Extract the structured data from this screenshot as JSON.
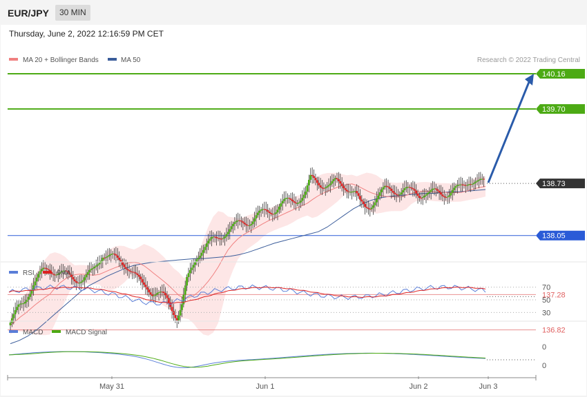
{
  "header": {
    "pair": "EUR/JPY",
    "timeframe": "30 MIN"
  },
  "timestamp": "Thursday, June 2, 2022 12:16:59 PM CET",
  "legend": {
    "ma20": "MA 20 + Bollinger Bands",
    "ma50": "MA 50",
    "credit": "Research © 2022 Trading Central",
    "rsi": "RSI",
    "rsi_ma": "9MA",
    "macd": "MACD",
    "macd_signal": "MACD Signal"
  },
  "colors": {
    "resistance": "#4caa14",
    "support": "#2a5bd7",
    "minor": "#e06060",
    "ma20": "#f08080",
    "ma50": "#3a5c9a",
    "rsi": "#5a7ed8",
    "rsi_ma": "#dd2020",
    "macd": "#5a7ed8",
    "macd_signal": "#4caa14",
    "bb_fill": "#fde2e2",
    "candle_up": "#4caa14",
    "candle_down": "#dd2020",
    "arrow": "#2a5baa"
  },
  "chart_data": [
    {
      "type": "line",
      "subtype": "candlestick",
      "x_ticks": [
        "May 31",
        "Jun 1",
        "Jun 2",
        "Jun 3"
      ],
      "ylim": [
        136.55,
        140.35
      ],
      "price_levels": [
        {
          "value": 140.16,
          "label": "140.16",
          "kind": "resistance"
        },
        {
          "value": 139.7,
          "label": "139.70",
          "kind": "resistance"
        },
        {
          "value": 138.73,
          "label": "138.73",
          "kind": "current"
        },
        {
          "value": 138.05,
          "label": "138.05",
          "kind": "support"
        },
        {
          "value": 137.28,
          "label": "137.28",
          "kind": "minor"
        },
        {
          "value": 136.82,
          "label": "136.82",
          "kind": "minor"
        }
      ],
      "forecast_target": 140.16,
      "close_series": [
        136.88,
        136.98,
        137.1,
        137.18,
        137.31,
        137.42,
        137.5,
        137.58,
        137.62,
        137.6,
        137.57,
        137.54,
        137.52,
        137.5,
        137.49,
        137.48,
        137.52,
        137.58,
        137.7,
        137.82,
        137.79,
        137.76,
        137.72,
        137.7,
        137.66,
        137.58,
        137.48,
        137.4,
        137.38,
        137.32,
        137.3,
        137.26,
        137.2,
        137.1,
        137.0,
        137.15,
        137.45,
        137.6,
        137.78,
        137.88,
        137.94,
        137.97,
        137.99,
        138.05,
        138.12,
        138.16,
        138.18,
        138.21,
        138.23,
        138.25,
        138.3,
        138.33,
        138.36,
        138.38,
        138.4,
        138.45,
        138.48,
        138.5,
        138.52,
        138.55,
        138.6,
        138.78,
        138.76,
        138.73,
        138.72,
        138.7,
        138.74,
        138.72,
        138.7,
        138.66,
        138.6,
        138.46,
        138.42,
        138.45,
        138.52,
        138.58,
        138.64,
        138.66,
        138.65,
        138.62,
        138.63,
        138.62,
        138.64,
        138.6,
        138.6,
        138.58,
        138.61,
        138.62,
        138.61,
        138.6,
        138.63,
        138.66,
        138.72,
        138.78,
        138.76,
        138.73,
        138.73
      ],
      "ma50_series": [
        136.64,
        136.68,
        136.74,
        136.82,
        136.92,
        137.02,
        137.12,
        137.22,
        137.32,
        137.4,
        137.46,
        137.52,
        137.57,
        137.62,
        137.66,
        137.68,
        137.7,
        137.71,
        137.72,
        137.73,
        137.74,
        137.75,
        137.75,
        137.76,
        137.77,
        137.78,
        137.8,
        137.83,
        137.87,
        137.91,
        137.95,
        137.98,
        138.01,
        138.04,
        138.07,
        138.1,
        138.16,
        138.24,
        138.32,
        138.4,
        138.46,
        138.51,
        138.54,
        138.56,
        138.57,
        138.58,
        138.59,
        138.6,
        138.6,
        138.61,
        138.62,
        138.62,
        138.63,
        138.64,
        138.65
      ]
    },
    {
      "type": "line",
      "name": "RSI",
      "series": [
        {
          "name": "RSI"
        },
        {
          "name": "9MA"
        }
      ],
      "y_ticks": [
        70,
        50,
        30
      ],
      "ylim": [
        25,
        80
      ]
    },
    {
      "type": "line",
      "name": "MACD",
      "series": [
        {
          "name": "MACD"
        },
        {
          "name": "MACD Signal"
        }
      ],
      "y_ticks": [
        0,
        0
      ]
    }
  ]
}
